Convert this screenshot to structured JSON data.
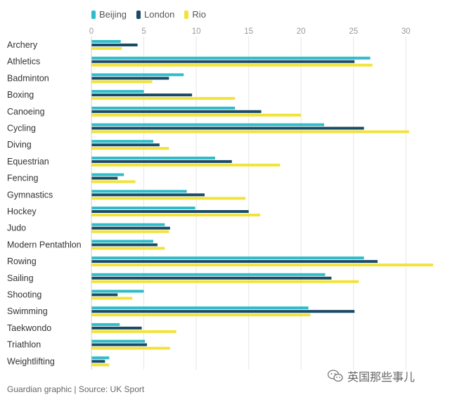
{
  "chart_data": {
    "type": "bar",
    "orientation": "horizontal",
    "categories": [
      "Archery",
      "Athletics",
      "Badminton",
      "Boxing",
      "Canoeing",
      "Cycling",
      "Diving",
      "Equestrian",
      "Fencing",
      "Gymnastics",
      "Hockey",
      "Judo",
      "Modern Pentathlon",
      "Rowing",
      "Sailing",
      "Shooting",
      "Swimming",
      "Taekwondo",
      "Triathlon",
      "Weightlifting"
    ],
    "series": [
      {
        "name": "Beijing",
        "color": "#2fbcc8",
        "values": [
          2.8,
          26.6,
          8.8,
          5.0,
          13.7,
          22.2,
          5.9,
          11.8,
          3.1,
          9.1,
          9.9,
          7.0,
          5.9,
          26.0,
          22.3,
          5.0,
          20.7,
          2.7,
          5.1,
          1.7
        ]
      },
      {
        "name": "London",
        "color": "#1a4a66",
        "values": [
          4.4,
          25.1,
          7.4,
          9.6,
          16.2,
          26.0,
          6.5,
          13.4,
          2.5,
          10.8,
          15.0,
          7.5,
          6.3,
          27.3,
          22.9,
          2.5,
          25.1,
          4.8,
          5.3,
          1.3
        ]
      },
      {
        "name": "Rio",
        "color": "#f2e33a",
        "values": [
          2.9,
          26.8,
          5.8,
          13.7,
          20.0,
          30.3,
          7.4,
          18.0,
          4.2,
          14.7,
          16.1,
          7.4,
          7.0,
          32.6,
          25.5,
          3.9,
          20.9,
          8.1,
          7.5,
          1.7
        ]
      }
    ],
    "xticks": [
      0,
      5,
      10,
      15,
      20,
      25,
      30
    ],
    "xlim": [
      0,
      33
    ],
    "grid": true,
    "legend_position": "top-left"
  },
  "source_text": "Guardian graphic | Source: UK Sport",
  "watermark_text": "英国那些事儿"
}
